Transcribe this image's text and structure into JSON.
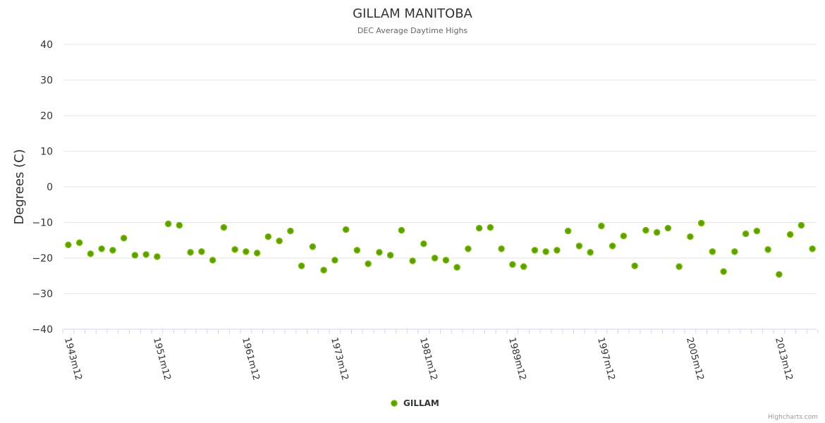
{
  "chart_data": {
    "type": "scatter",
    "title": "GILLAM MANITOBA",
    "subtitle": "DEC Average Daytime Highs",
    "ylabel": "Degrees (C)",
    "xlabel": "",
    "ylim": [
      -40,
      40
    ],
    "yticks": [
      40,
      30,
      20,
      10,
      0,
      -10,
      -20,
      -30,
      -40
    ],
    "grid": true,
    "legend_position": "bottom-center",
    "x_tick_labels": [
      {
        "index": 0,
        "label": "1943m12"
      },
      {
        "index": 8,
        "label": "1951m12"
      },
      {
        "index": 16,
        "label": "1961m12"
      },
      {
        "index": 24,
        "label": "1973m12"
      },
      {
        "index": 32,
        "label": "1981m12"
      },
      {
        "index": 40,
        "label": "1989m12"
      },
      {
        "index": 48,
        "label": "1997m12"
      },
      {
        "index": 56,
        "label": "2005m12"
      },
      {
        "index": 64,
        "label": "2013m12"
      }
    ],
    "series": [
      {
        "name": "GILLAM",
        "color": "#5a9e00",
        "values": [
          -16.3,
          -15.7,
          -18.8,
          -17.4,
          -17.8,
          -14.4,
          -19.2,
          -19.0,
          -19.6,
          -10.4,
          -10.8,
          -18.4,
          -18.2,
          -20.6,
          -11.4,
          -17.6,
          -18.2,
          -18.6,
          -14.0,
          -15.2,
          -12.4,
          -22.2,
          -16.8,
          -23.4,
          -20.6,
          -12.0,
          -17.8,
          -21.6,
          -18.4,
          -19.2,
          -12.2,
          -20.8,
          -16.0,
          -20.0,
          -20.6,
          -22.6,
          -17.4,
          -11.6,
          -11.4,
          -17.4,
          -21.8,
          -22.4,
          -17.8,
          -18.2,
          -17.8,
          -12.4,
          -16.6,
          -18.4,
          -11.0,
          -16.6,
          -13.8,
          -22.2,
          -12.2,
          -12.8,
          -11.6,
          -22.4,
          -14.0,
          -10.2,
          -18.2,
          -23.8,
          -18.2,
          -13.2,
          -12.4,
          -17.6,
          -24.6,
          -13.4,
          -10.8,
          -17.4
        ]
      }
    ]
  },
  "credits": "Highcharts.com"
}
